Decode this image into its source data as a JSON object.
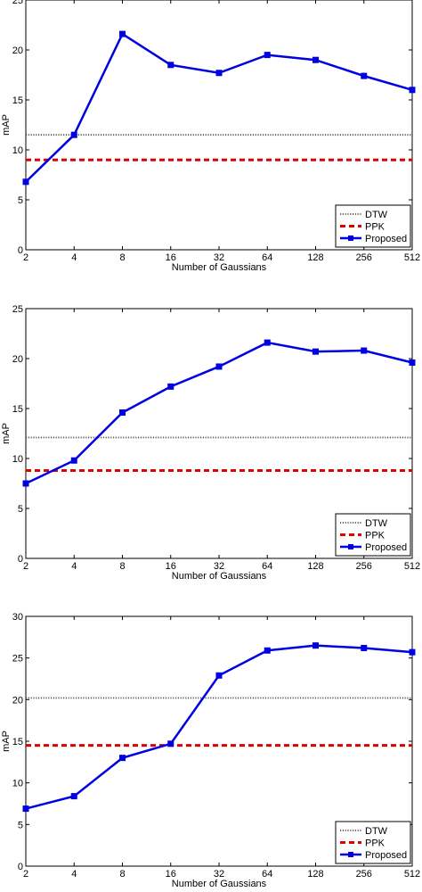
{
  "colors": {
    "dtw": "#555555",
    "ppk": "#e00000",
    "proposed": "#0000e0",
    "axis": "#000000"
  },
  "chart_data": [
    {
      "type": "line",
      "title": "",
      "xlabel": "Number of Gaussians",
      "ylabel": "mAP",
      "categories": [
        "2",
        "4",
        "8",
        "16",
        "32",
        "64",
        "128",
        "256",
        "512"
      ],
      "ylim": [
        0,
        25
      ],
      "yticks": [
        "0",
        "5",
        "10",
        "15",
        "20",
        "25"
      ],
      "legend_position": "bottom-right",
      "grid": false,
      "series": [
        {
          "name": "DTW",
          "style": "dotted",
          "values": [
            11.5,
            11.5,
            11.5,
            11.5,
            11.5,
            11.5,
            11.5,
            11.5,
            11.5
          ]
        },
        {
          "name": "PPK",
          "style": "dashed",
          "values": [
            9.0,
            9.0,
            9.0,
            9.0,
            9.0,
            9.0,
            9.0,
            9.0,
            9.0
          ]
        },
        {
          "name": "Proposed",
          "style": "solid-square",
          "values": [
            6.8,
            11.5,
            21.6,
            18.5,
            17.7,
            19.5,
            19.0,
            17.4,
            16.0
          ]
        }
      ]
    },
    {
      "type": "line",
      "title": "",
      "xlabel": "Number of Gaussians",
      "ylabel": "mAP",
      "categories": [
        "2",
        "4",
        "8",
        "16",
        "32",
        "64",
        "128",
        "256",
        "512"
      ],
      "ylim": [
        0,
        25
      ],
      "yticks": [
        "0",
        "5",
        "10",
        "15",
        "20",
        "25"
      ],
      "legend_position": "bottom-right",
      "grid": false,
      "series": [
        {
          "name": "DTW",
          "style": "dotted",
          "values": [
            12.1,
            12.1,
            12.1,
            12.1,
            12.1,
            12.1,
            12.1,
            12.1,
            12.1
          ]
        },
        {
          "name": "PPK",
          "style": "dashed",
          "values": [
            8.8,
            8.8,
            8.8,
            8.8,
            8.8,
            8.8,
            8.8,
            8.8,
            8.8
          ]
        },
        {
          "name": "Proposed",
          "style": "solid-square",
          "values": [
            7.5,
            9.8,
            14.6,
            17.2,
            19.2,
            21.6,
            20.7,
            20.8,
            19.6
          ]
        }
      ]
    },
    {
      "type": "line",
      "title": "",
      "xlabel": "Number of Gaussians",
      "ylabel": "mAP",
      "categories": [
        "2",
        "4",
        "8",
        "16",
        "32",
        "64",
        "128",
        "256",
        "512"
      ],
      "ylim": [
        0,
        30
      ],
      "yticks": [
        "0",
        "5",
        "10",
        "15",
        "20",
        "25",
        "30"
      ],
      "legend_position": "bottom-right",
      "grid": false,
      "series": [
        {
          "name": "DTW",
          "style": "dotted",
          "values": [
            20.2,
            20.2,
            20.2,
            20.2,
            20.2,
            20.2,
            20.2,
            20.2,
            20.2
          ]
        },
        {
          "name": "PPK",
          "style": "dashed",
          "values": [
            14.5,
            14.5,
            14.5,
            14.5,
            14.5,
            14.5,
            14.5,
            14.5,
            14.5
          ]
        },
        {
          "name": "Proposed",
          "style": "solid-square",
          "values": [
            6.9,
            8.4,
            13.0,
            14.7,
            22.9,
            25.9,
            26.5,
            26.2,
            25.7
          ]
        }
      ]
    }
  ]
}
